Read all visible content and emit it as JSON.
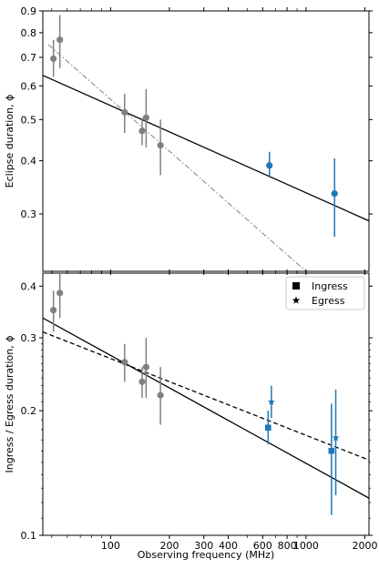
{
  "chart_data": [
    {
      "type": "scatter",
      "panel": "top",
      "title": "",
      "ylabel": "Eclipse duration, ϕ",
      "xlabel": "",
      "xscale": "log",
      "yscale": "log",
      "xlim": [
        45,
        2100
      ],
      "ylim": [
        0.22,
        0.9
      ],
      "yticks": [
        0.3,
        0.4,
        0.5,
        0.6,
        0.7,
        0.8,
        0.9
      ],
      "ytick_labels": [
        "0.3",
        "0.4",
        "0.5",
        "0.6",
        "0.7",
        "0.8",
        "0.9"
      ],
      "grid": false,
      "series": [
        {
          "color": "#808080",
          "marker": "circle",
          "points": [
            {
              "x": 51,
              "y": 0.695,
              "lo": 0.63,
              "hi": 0.77
            },
            {
              "x": 55,
              "y": 0.77,
              "lo": 0.66,
              "hi": 0.88
            },
            {
              "x": 118,
              "y": 0.52,
              "lo": 0.465,
              "hi": 0.575
            },
            {
              "x": 145,
              "y": 0.47,
              "lo": 0.435,
              "hi": 0.505
            },
            {
              "x": 152,
              "y": 0.505,
              "lo": 0.43,
              "hi": 0.59
            },
            {
              "x": 180,
              "y": 0.435,
              "lo": 0.37,
              "hi": 0.5
            }
          ]
        },
        {
          "color": "#1f77b4",
          "marker": "circle",
          "points": [
            {
              "x": 650,
              "y": 0.39,
              "lo": 0.365,
              "hi": 0.42
            },
            {
              "x": 1400,
              "y": 0.335,
              "lo": 0.265,
              "hi": 0.405
            }
          ]
        }
      ],
      "fit_lines": [
        {
          "style": "solid",
          "color": "#000000",
          "x": [
            45,
            2100
          ],
          "y": [
            0.635,
            0.289
          ]
        },
        {
          "style": "dashdot",
          "color": "#808080",
          "x": [
            48,
            1000
          ],
          "y": [
            0.75,
            0.22
          ]
        }
      ]
    },
    {
      "type": "scatter",
      "panel": "bottom",
      "title": "",
      "ylabel": "Ingress / Egress duration, ϕ",
      "xlabel": "Observing frequency (MHz)",
      "xscale": "log",
      "yscale": "log",
      "xlim": [
        45,
        2100
      ],
      "ylim": [
        0.1,
        0.43
      ],
      "yticks": [
        0.1,
        0.2,
        0.3,
        0.4
      ],
      "ytick_labels": [
        "0.1",
        "0.2",
        "0.3",
        "0.4"
      ],
      "xticks": [
        100,
        200,
        300,
        400,
        600,
        800,
        1000,
        2000
      ],
      "xtick_labels": [
        "100",
        "200",
        "300",
        "400",
        "600",
        "800",
        "1000",
        "2000"
      ],
      "grid": false,
      "legend": {
        "position": "top-right",
        "entries": [
          {
            "label": "Ingress",
            "marker": "square"
          },
          {
            "label": "Egress",
            "marker": "star"
          }
        ]
      },
      "series": [
        {
          "color": "#808080",
          "marker": "circle",
          "points": [
            {
              "x": 51,
              "y": 0.35,
              "lo": 0.31,
              "hi": 0.39
            },
            {
              "x": 55,
              "y": 0.385,
              "lo": 0.335,
              "hi": 0.435
            },
            {
              "x": 118,
              "y": 0.262,
              "lo": 0.235,
              "hi": 0.29
            },
            {
              "x": 145,
              "y": 0.235,
              "lo": 0.215,
              "hi": 0.255
            },
            {
              "x": 152,
              "y": 0.255,
              "lo": 0.215,
              "hi": 0.3
            },
            {
              "x": 180,
              "y": 0.218,
              "lo": 0.185,
              "hi": 0.255
            }
          ]
        },
        {
          "name": "Ingress",
          "color": "#1f77b4",
          "marker": "square",
          "points": [
            {
              "x": 640,
              "y": 0.182,
              "lo": 0.166,
              "hi": 0.2
            },
            {
              "x": 1350,
              "y": 0.16,
              "lo": 0.112,
              "hi": 0.208
            }
          ]
        },
        {
          "name": "Egress",
          "color": "#1f77b4",
          "marker": "star",
          "points": [
            {
              "x": 665,
              "y": 0.21,
              "lo": 0.192,
              "hi": 0.23
            },
            {
              "x": 1420,
              "y": 0.172,
              "lo": 0.125,
              "hi": 0.225
            }
          ]
        }
      ],
      "fit_lines": [
        {
          "style": "solid",
          "color": "#000000",
          "x": [
            45,
            2100
          ],
          "y": [
            0.335,
            0.123
          ]
        },
        {
          "style": "dashed",
          "color": "#000000",
          "x": [
            45,
            2100
          ],
          "y": [
            0.31,
            0.152
          ]
        }
      ]
    }
  ]
}
